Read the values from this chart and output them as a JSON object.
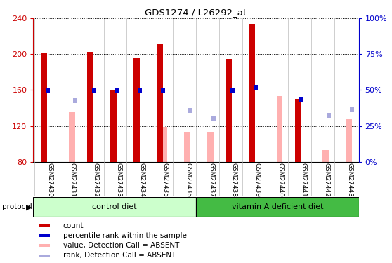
{
  "title": "GDS1274 / L26292_at",
  "samples": [
    "GSM27430",
    "GSM27431",
    "GSM27432",
    "GSM27433",
    "GSM27434",
    "GSM27435",
    "GSM27436",
    "GSM27437",
    "GSM27438",
    "GSM27439",
    "GSM27440",
    "GSM27441",
    "GSM27442",
    "GSM27443"
  ],
  "red_bars": [
    201,
    0,
    203,
    160,
    196,
    211,
    0,
    0,
    195,
    234,
    0,
    150,
    0,
    0
  ],
  "blue_bars": [
    160,
    0,
    160,
    160,
    160,
    160,
    0,
    0,
    160,
    163,
    0,
    150,
    0,
    0
  ],
  "pink_bars": [
    0,
    135,
    0,
    0,
    0,
    119,
    113,
    113,
    0,
    0,
    153,
    0,
    93,
    128
  ],
  "lavender_bars": [
    0,
    148,
    0,
    0,
    0,
    0,
    137,
    128,
    0,
    0,
    0,
    0,
    132,
    138
  ],
  "n_control": 7,
  "n_vitamin": 7,
  "control_label": "control diet",
  "vitamin_label": "vitamin A deficient diet",
  "protocol_label": "protocol",
  "ylim_left": [
    80,
    240
  ],
  "ylim_right": [
    0,
    100
  ],
  "yticks_left": [
    80,
    120,
    160,
    200,
    240
  ],
  "yticks_right": [
    0,
    25,
    50,
    75,
    100
  ],
  "yticklabels_right": [
    "0%",
    "25%",
    "50%",
    "75%",
    "100%"
  ],
  "left_axis_color": "#cc0000",
  "right_axis_color": "#0000cc",
  "red_color": "#cc0000",
  "blue_color": "#0000cc",
  "pink_color": "#ffb0b0",
  "lavender_color": "#aaaadd",
  "control_bg": "#ccffcc",
  "vitamin_bg": "#44bb44",
  "legend_items": [
    "count",
    "percentile rank within the sample",
    "value, Detection Call = ABSENT",
    "rank, Detection Call = ABSENT"
  ]
}
